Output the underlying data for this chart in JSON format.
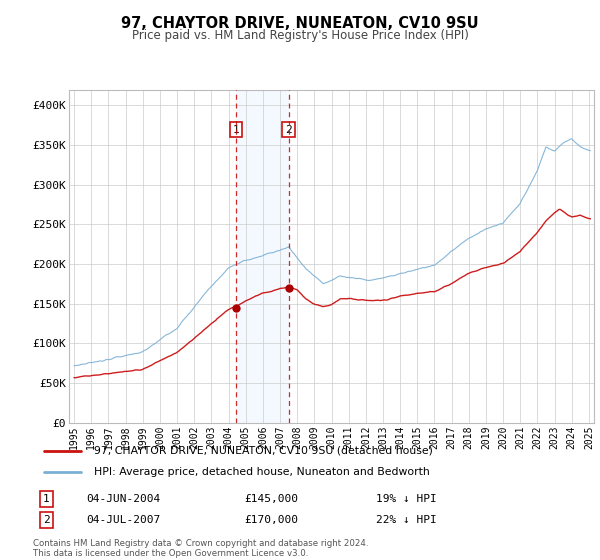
{
  "title": "97, CHAYTOR DRIVE, NUNEATON, CV10 9SU",
  "subtitle": "Price paid vs. HM Land Registry's House Price Index (HPI)",
  "legend_line1": "97, CHAYTOR DRIVE, NUNEATON, CV10 9SU (detached house)",
  "legend_line2": "HPI: Average price, detached house, Nuneaton and Bedworth",
  "footer1": "Contains HM Land Registry data © Crown copyright and database right 2024.",
  "footer2": "This data is licensed under the Open Government Licence v3.0.",
  "sale1_label": "1",
  "sale1_date": "04-JUN-2004",
  "sale1_price": "£145,000",
  "sale1_hpi": "19% ↓ HPI",
  "sale2_label": "2",
  "sale2_date": "04-JUL-2007",
  "sale2_price": "£170,000",
  "sale2_hpi": "22% ↓ HPI",
  "sale1_x": 2004.42,
  "sale1_y": 145000,
  "sale2_x": 2007.5,
  "sale2_y": 170000,
  "vline1_x": 2004.42,
  "vline2_x": 2007.5,
  "hpi_color": "#7bafd4",
  "price_color": "#cc1111",
  "sale_dot_color": "#aa0000",
  "shading_color": "#ddeeff",
  "ylim_min": 0,
  "ylim_max": 420000,
  "xlim_min": 1994.7,
  "xlim_max": 2025.3,
  "yticks": [
    0,
    50000,
    100000,
    150000,
    200000,
    250000,
    300000,
    350000,
    400000
  ],
  "ytick_labels": [
    "£0",
    "£50K",
    "£100K",
    "£150K",
    "£200K",
    "£250K",
    "£300K",
    "£350K",
    "£400K"
  ],
  "xticks": [
    1995,
    1996,
    1997,
    1998,
    1999,
    2000,
    2001,
    2002,
    2003,
    2004,
    2005,
    2006,
    2007,
    2008,
    2009,
    2010,
    2011,
    2012,
    2013,
    2014,
    2015,
    2016,
    2017,
    2018,
    2019,
    2020,
    2021,
    2022,
    2023,
    2024,
    2025
  ]
}
